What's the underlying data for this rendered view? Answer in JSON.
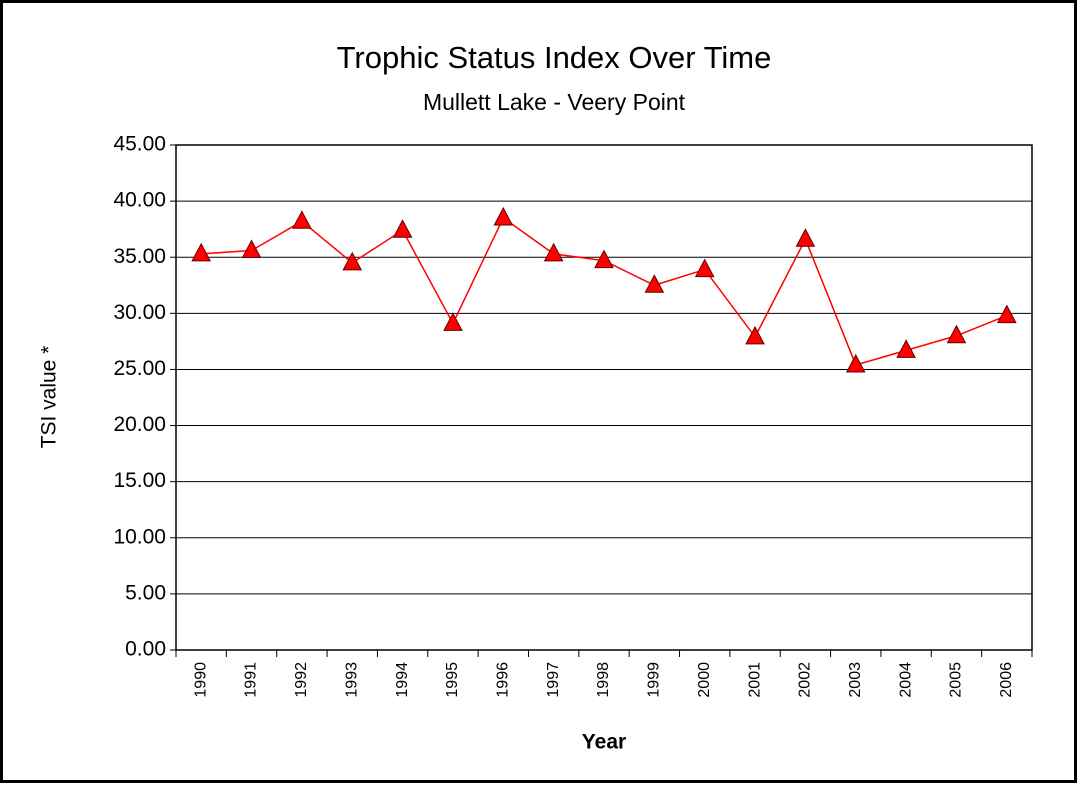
{
  "chart_data": {
    "type": "line",
    "title": "Trophic Status Index Over Time",
    "subtitle": "Mullett Lake - Veery Point",
    "x_label": "Year",
    "y_label": "TSI value *",
    "categories": [
      "1990",
      "1991",
      "1992",
      "1993",
      "1994",
      "1995",
      "1996",
      "1997",
      "1998",
      "1999",
      "2000",
      "2001",
      "2002",
      "2003",
      "2004",
      "2005",
      "2006"
    ],
    "series": [
      {
        "name": "TSI",
        "color": "#ff0000",
        "values": [
          35.3,
          35.6,
          38.2,
          34.5,
          37.4,
          29.1,
          38.5,
          35.3,
          34.7,
          32.5,
          33.9,
          27.9,
          36.6,
          25.4,
          26.7,
          28.0,
          29.8
        ]
      }
    ],
    "ylim": [
      0,
      45
    ],
    "yticks": [
      {
        "value": 0,
        "label": "0.00"
      },
      {
        "value": 5,
        "label": "5.00"
      },
      {
        "value": 10,
        "label": "10.00"
      },
      {
        "value": 15,
        "label": "15.00"
      },
      {
        "value": 20,
        "label": "20.00"
      },
      {
        "value": 25,
        "label": "25.00"
      },
      {
        "value": 30,
        "label": "30.00"
      },
      {
        "value": 35,
        "label": "35.00"
      },
      {
        "value": 40,
        "label": "40.00"
      },
      {
        "value": 45,
        "label": "45.00"
      }
    ],
    "grid": true
  }
}
